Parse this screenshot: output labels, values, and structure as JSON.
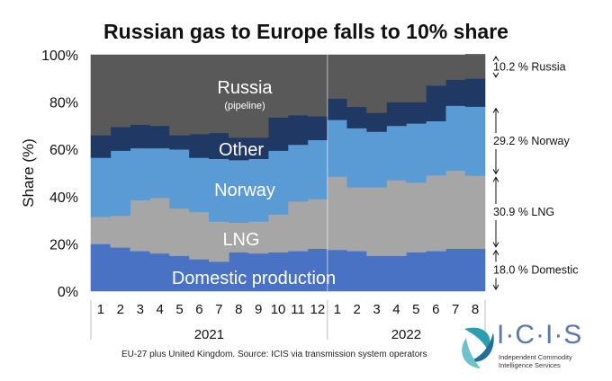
{
  "chart_data": {
    "type": "area",
    "title": "Russian gas to Europe falls to 10% share",
    "ylabel": "Share (%)",
    "ylim": [
      0,
      100
    ],
    "yticks": [
      "0%",
      "20%",
      "40%",
      "60%",
      "80%",
      "100%"
    ],
    "x_labels": [
      "1",
      "2",
      "3",
      "4",
      "5",
      "6",
      "7",
      "8",
      "9",
      "10",
      "11",
      "12",
      "1",
      "2",
      "3",
      "4",
      "5",
      "6",
      "7",
      "8"
    ],
    "groups": [
      {
        "label": "2021",
        "count": 12
      },
      {
        "label": "2022",
        "count": 8
      }
    ],
    "series": [
      {
        "name": "Domestic production",
        "color": "#4a72c4",
        "values": [
          20,
          18.5,
          17,
          16,
          15,
          13.5,
          12.5,
          16.5,
          16,
          16.5,
          17,
          18,
          17.5,
          17,
          15,
          15,
          16.5,
          17,
          18,
          18
        ]
      },
      {
        "name": "LNG",
        "color": "#a6a6a6",
        "values": [
          11.5,
          13.5,
          21.5,
          23.5,
          20,
          20,
          17,
          12.5,
          13.5,
          16,
          21,
          21,
          31,
          27,
          29,
          32,
          29.5,
          32,
          33,
          30.9
        ]
      },
      {
        "name": "Norway",
        "color": "#5b9bd5",
        "values": [
          25,
          27.5,
          22,
          21,
          25,
          23,
          26.5,
          26.5,
          26.5,
          27,
          24,
          25,
          24,
          25,
          23.5,
          23,
          25,
          23,
          27.5,
          29.2
        ]
      },
      {
        "name": "Other",
        "color": "#203864",
        "values": [
          9.5,
          10,
          10,
          9.5,
          6,
          10,
          11,
          9.5,
          9,
          14,
          12.5,
          10,
          9,
          9,
          8,
          10,
          9,
          15,
          11,
          11.9
        ]
      },
      {
        "name": "Russia",
        "sublabel": "(pipeline)",
        "color": "#595959",
        "values": [
          34,
          30.5,
          29.5,
          30,
          34,
          33.5,
          33,
          35,
          35,
          26.5,
          25.5,
          26,
          18.5,
          22,
          24.5,
          20,
          20,
          13,
          10.5,
          10.2
        ]
      }
    ],
    "annotations": [
      {
        "text": "10.2 % Russia",
        "low": 89.8,
        "high": 100
      },
      {
        "text": "29.2 % Norway",
        "low": 48.9,
        "high": 78.1
      },
      {
        "text": "30.9 % LNG",
        "low": 18,
        "high": 48.9
      },
      {
        "text": "18.0 % Domestic",
        "low": 0,
        "high": 18
      }
    ]
  },
  "footnote": "EU-27 plus United Kingdom. Source: ICIS via transmission system operators",
  "logo": {
    "name": "I·C·I·S",
    "sub1": "Independent Commodity",
    "sub2": "Intelligence Services"
  }
}
